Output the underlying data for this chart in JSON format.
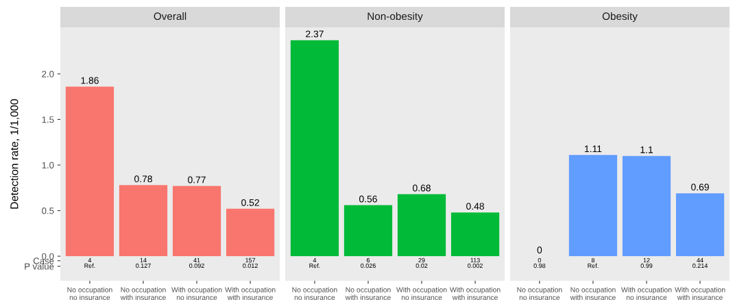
{
  "chart_data": [
    {
      "type": "bar",
      "title": "Overall",
      "ylabel": "Detection rate, 1/1,000",
      "categories": [
        "No occupation\nno insurance",
        "No occupation\nwith insurance",
        "With occupation\nno insurance",
        "With occupation\nwith insurance"
      ],
      "values": [
        1.86,
        0.78,
        0.77,
        0.52
      ],
      "color": "#f8766d",
      "data_labels": true,
      "grid": false,
      "ylim": [
        -0.27,
        2.51
      ],
      "yticks": [
        {
          "value": -0.11,
          "label": "P value"
        },
        {
          "value": -0.05,
          "label": "Case"
        },
        {
          "value": 0,
          "label": "0.0"
        },
        {
          "value": 0.5,
          "label": "0.5"
        },
        {
          "value": 1,
          "label": "1.0"
        },
        {
          "value": 1.5,
          "label": "1.5"
        },
        {
          "value": 2,
          "label": "2.0"
        }
      ],
      "annotations": [
        "4",
        "Ref.",
        "14",
        "0.127",
        "41",
        "0.092",
        "157",
        "0.012"
      ]
    },
    {
      "type": "bar",
      "title": "Non-obesity",
      "categories": [
        "No occupation\nno insurance",
        "No occupation\nwith insurance",
        "With occupation\nno insurance",
        "With occupation\nwith insurance"
      ],
      "values": [
        2.37,
        0.56,
        0.68,
        0.48
      ],
      "color": "#00ba38",
      "data_labels": true,
      "grid": false,
      "tick_labels": "x",
      "ylim": [
        -0.27,
        2.51
      ],
      "annotations": [
        "4",
        "Ref.",
        "6",
        "0.026",
        "29",
        "0.02",
        "113",
        "0.002"
      ]
    },
    {
      "type": "bar",
      "title": "Obesity",
      "categories": [
        "No occupation\nno insurance",
        "No occupation\nwith insurance",
        "With occupation\nno insurance",
        "With occupation\nwith insurance"
      ],
      "values": [
        0,
        1.11,
        1.1,
        0.69
      ],
      "color": "#619cff",
      "data_labels": true,
      "grid": false,
      "tick_labels": "x",
      "ylim": [
        -0.27,
        2.51
      ],
      "annotations": [
        "0",
        "0.98",
        "8",
        "Ref.",
        "12",
        "0.99",
        "44",
        "0.214"
      ]
    }
  ]
}
